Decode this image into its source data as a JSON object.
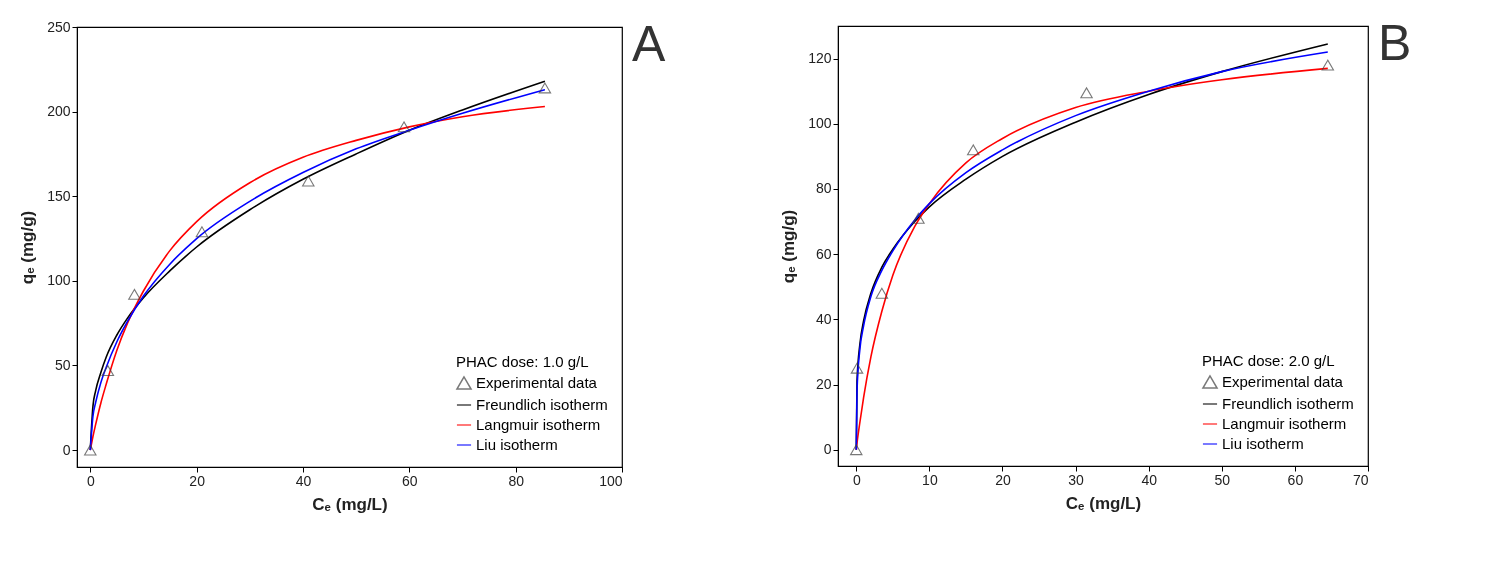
{
  "chart_data": [
    {
      "type": "line",
      "annotations": [
        "A"
      ],
      "xlabel": "Cₑ (mg/L)",
      "ylabel": "qₑ (mg/g)",
      "legend_title": "PHAC dose: 1.0 g/L",
      "legend": "bottom right",
      "grid": false,
      "xlim": [
        -2.5,
        100
      ],
      "xticks": [
        0,
        20,
        40,
        60,
        80,
        100
      ],
      "ylim": [
        -10,
        250
      ],
      "yticks": [
        0,
        50,
        100,
        150,
        200,
        250
      ],
      "series": [
        {
          "name": "Experimental data",
          "type": "scatter",
          "marker": "triangle",
          "color": "#404040",
          "x": [
            0,
            3.3,
            8.3,
            21,
            41,
            59,
            85.5
          ],
          "values": [
            0,
            47,
            92,
            129,
            159,
            191,
            214
          ]
        },
        {
          "name": "Freundlich isotherm",
          "color": "#000000",
          "x": [
            0,
            0.5,
            1,
            2,
            3,
            5,
            7,
            10,
            15,
            20,
            30,
            40,
            50,
            60,
            70,
            85.5
          ],
          "values": [
            0,
            26,
            35,
            46,
            55,
            68,
            78,
            90,
            106,
            120,
            142,
            160,
            175,
            189,
            201,
            218
          ]
        },
        {
          "name": "Langmuir isotherm",
          "color": "#ff0000",
          "x": [
            0,
            0.5,
            1,
            2,
            3,
            5,
            7,
            10,
            15,
            20,
            30,
            40,
            50,
            60,
            70,
            85.5
          ],
          "values": [
            0,
            8,
            15,
            28,
            39,
            59,
            75,
            94,
            118,
            135,
            158,
            173,
            183,
            191,
            197,
            203
          ]
        },
        {
          "name": "Liu isotherm",
          "color": "#0000ff",
          "x": [
            0,
            0.5,
            1,
            2,
            3,
            5,
            7,
            10,
            15,
            20,
            30,
            40,
            50,
            60,
            70,
            85.5
          ],
          "values": [
            0,
            20,
            28,
            40,
            49,
            64,
            76,
            91,
            110,
            125,
            147,
            164,
            178,
            189,
            199,
            213
          ]
        }
      ]
    },
    {
      "type": "line",
      "annotations": [
        "B"
      ],
      "xlabel": "Cₑ (mg/L)",
      "ylabel": "qₑ (mg/g)",
      "legend_title": "PHAC dose: 2.0 g/L",
      "legend": "bottom right",
      "grid": false,
      "xlim": [
        -2.5,
        70
      ],
      "xticks": [
        0,
        10,
        20,
        30,
        40,
        50,
        60,
        70
      ],
      "ylim": [
        -5,
        130
      ],
      "yticks": [
        0,
        20,
        40,
        60,
        80,
        100,
        120
      ],
      "series": [
        {
          "name": "Experimental data",
          "type": "scatter",
          "marker": "triangle",
          "color": "#404040",
          "x": [
            0,
            0.1,
            3.5,
            8.5,
            16,
            31.5,
            64.5
          ],
          "values": [
            0,
            25,
            48,
            71,
            92,
            109.5,
            118
          ]
        },
        {
          "name": "Freundlich isotherm",
          "color": "#000000",
          "x": [
            0,
            0.1,
            0.5,
            1,
            2,
            3.5,
            5,
            8,
            10,
            15,
            20,
            30,
            40,
            50,
            64.5
          ],
          "values": [
            0,
            21,
            32.5,
            39.5,
            48,
            56,
            61.5,
            70,
            74.5,
            83,
            90,
            100.5,
            109,
            116,
            124.5
          ]
        },
        {
          "name": "Langmuir isotherm",
          "color": "#ff0000",
          "x": [
            0,
            0.1,
            0.5,
            1,
            2,
            3.5,
            5,
            8,
            10,
            15,
            20,
            30,
            40,
            50,
            64.5
          ],
          "values": [
            0,
            2,
            8.5,
            16,
            28.5,
            42.5,
            53.5,
            68.5,
            75.5,
            88,
            95.5,
            105,
            110,
            113.5,
            117
          ]
        },
        {
          "name": "Liu isotherm",
          "color": "#0000ff",
          "x": [
            0,
            0.1,
            0.5,
            1,
            2,
            3.5,
            5,
            8,
            10,
            15,
            20,
            30,
            40,
            50,
            64.5
          ],
          "values": [
            0,
            18,
            31,
            38,
            47,
            55,
            61,
            70.5,
            75.5,
            85,
            92,
            102.5,
            110,
            116,
            122
          ]
        }
      ]
    }
  ]
}
